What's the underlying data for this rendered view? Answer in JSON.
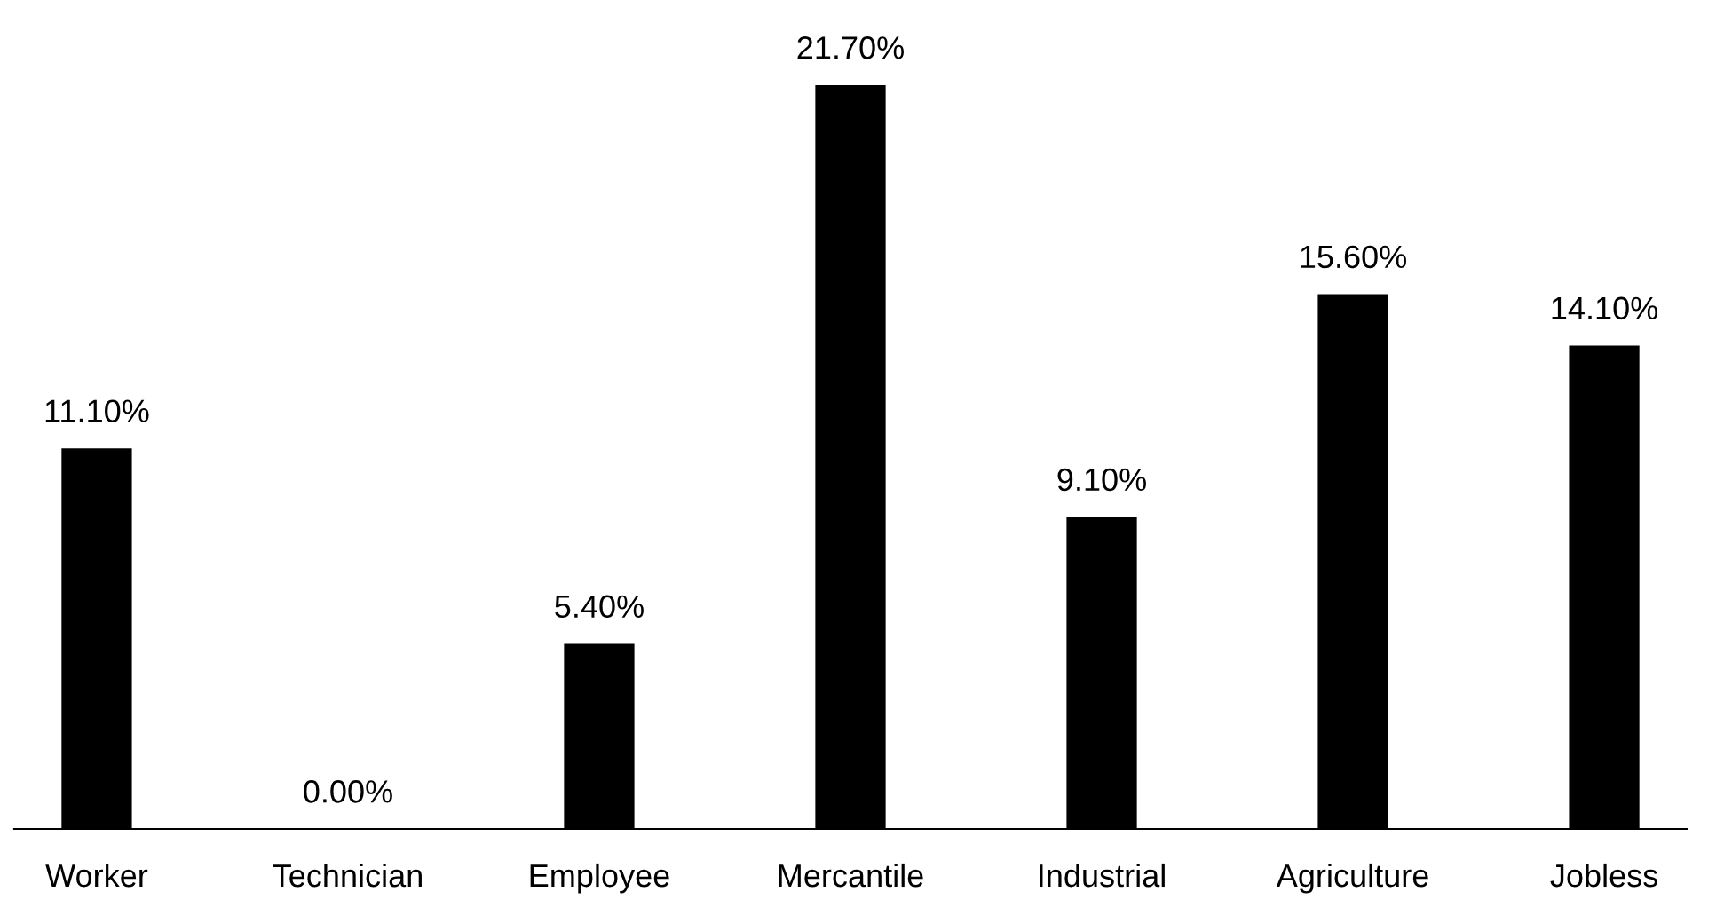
{
  "chart_data": {
    "type": "bar",
    "categories": [
      "Worker",
      "Technician",
      "Employee",
      "Mercantile",
      "Industrial",
      "Agriculture",
      "Jobless"
    ],
    "values": [
      11.1,
      0,
      5.4,
      21.7,
      9.1,
      15.6,
      14.1
    ],
    "value_labels": [
      "11.10%",
      "0.00%",
      "5.40%",
      "21.70%",
      "9.10%",
      "15.60%",
      "14.10%"
    ],
    "color": "#000000",
    "tick_labels": "x",
    "grid": false,
    "legend": false
  }
}
